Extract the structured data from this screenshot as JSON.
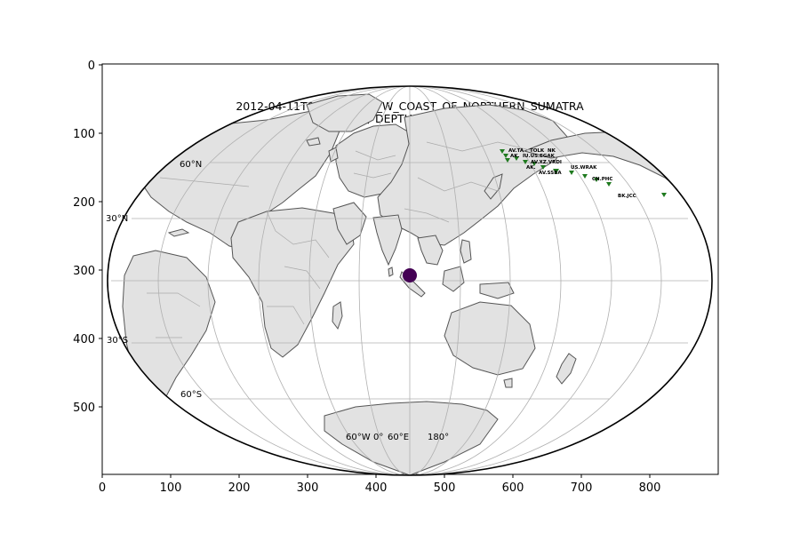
{
  "figure": {
    "title_line1": "2012-04-11T083836_OFF_W_COAST_OF_NORTHERN_SUMATRA",
    "title_line2": "NSTA: 174 // DEPTH: 20.0km // Mw 8.6"
  },
  "axes": {
    "x_ticks": [
      "0",
      "100",
      "200",
      "300",
      "400",
      "500",
      "600",
      "700",
      "800"
    ],
    "y_ticks": [
      "0",
      "100",
      "200",
      "300",
      "400",
      "500"
    ]
  },
  "graticule": {
    "lat_labels": [
      "60°N",
      "30°N",
      "30°S",
      "60°S"
    ],
    "lon_labels": [
      "60°W",
      "0°",
      "60°E",
      "180°"
    ]
  },
  "event": {
    "label": "event-marker",
    "color": "#440154"
  },
  "stations": {
    "color": "#1f7a1f",
    "labels": [
      "AV.TA",
      "TOLK",
      "NK",
      "AK.",
      "IU.US.EGAK",
      "AV.XZ.VRDI",
      "AK.",
      "US.WRAK",
      "AV.SSBA",
      "CN.PHC",
      "BK.JCC"
    ]
  },
  "colors": {
    "land": "#e2e2e2",
    "coast": "#555555",
    "grid": "#b0b0b0",
    "event": "#440154",
    "station": "#1f7a1f"
  }
}
